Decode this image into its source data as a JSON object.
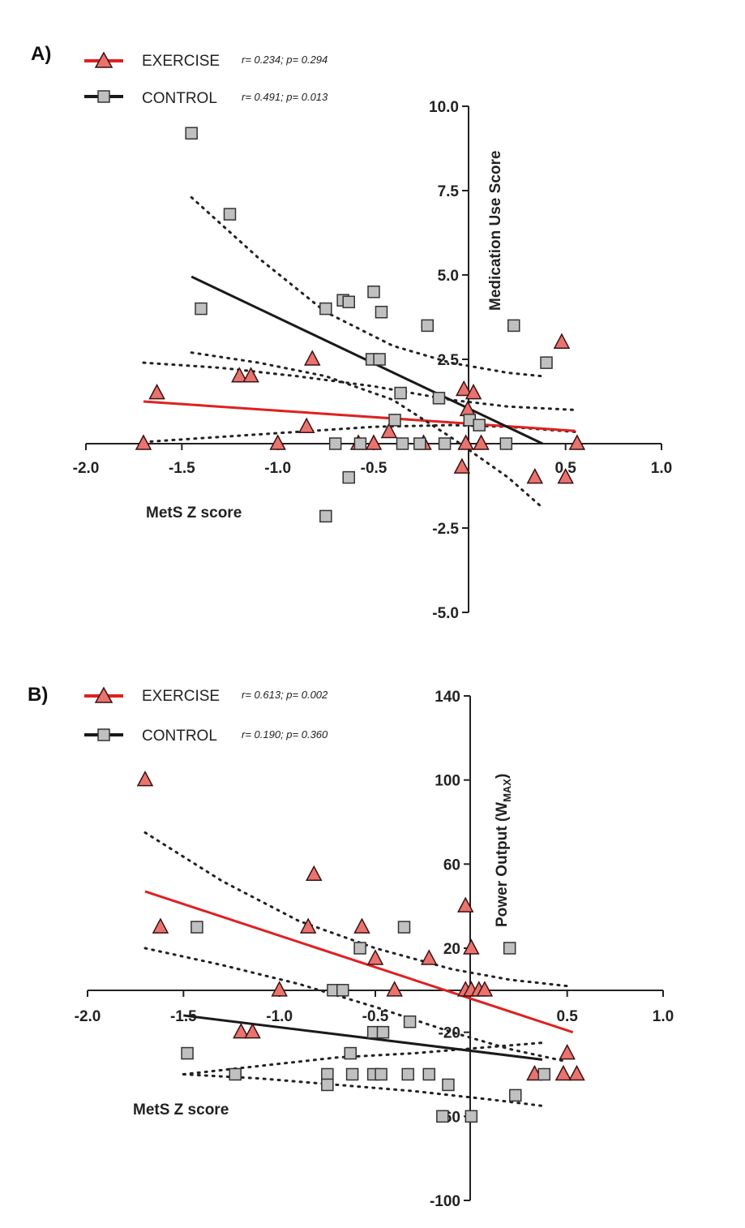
{
  "chart_data": [
    {
      "panel_label": "A)",
      "type": "scatter",
      "xlabel": "MetS Z score",
      "ylabel": "Medication Use Score",
      "xlim": [
        -2.0,
        1.0
      ],
      "ylim": [
        -5.0,
        10.0
      ],
      "xticks": [
        "-2.0",
        "-1.5",
        "-1.0",
        "-0.5",
        "0.5",
        "1.0"
      ],
      "yticks": [
        "-5.0",
        "-2.5",
        "2.5",
        "5.0",
        "7.5",
        "10.0"
      ],
      "series": [
        {
          "name": "EXERCISE",
          "stats": "r= 0.234; p= 0.294",
          "marker": "triangle",
          "color": "#e8736f",
          "line_color": "#e02020",
          "points": [
            [
              -1.7,
              0
            ],
            [
              -1.63,
              1.5
            ],
            [
              -1.0,
              0
            ],
            [
              -0.85,
              0.5
            ],
            [
              -0.82,
              2.5
            ],
            [
              -1.2,
              2
            ],
            [
              -1.14,
              2
            ],
            [
              -0.58,
              0
            ],
            [
              -0.5,
              0
            ],
            [
              -0.42,
              0.35
            ],
            [
              -0.24,
              0
            ],
            [
              -0.02,
              0
            ],
            [
              0.06,
              0
            ],
            [
              -0.03,
              1.6
            ],
            [
              0.02,
              1.5
            ],
            [
              -0.01,
              1.0
            ],
            [
              -0.04,
              -0.7
            ],
            [
              0.34,
              -1.0
            ],
            [
              0.48,
              3.0
            ],
            [
              0.5,
              -1.0
            ],
            [
              0.56,
              0
            ]
          ],
          "fit_line": {
            "x": [
              -1.7,
              0.55
            ],
            "y": [
              1.25,
              0.38
            ]
          },
          "ci": [
            {
              "x": [
                -1.7,
                -1.3,
                -0.9,
                -0.5,
                -0.1,
                0.2,
                0.55
              ],
              "y": [
                0.05,
                0.2,
                0.35,
                0.5,
                0.55,
                0.5,
                0.35
              ]
            },
            {
              "x": [
                -1.7,
                -1.3,
                -0.9,
                -0.5,
                -0.1,
                0.2,
                0.55
              ],
              "y": [
                2.4,
                2.25,
                2.0,
                1.7,
                1.3,
                1.1,
                1.0
              ]
            }
          ]
        },
        {
          "name": "CONTROL",
          "stats": "r= 0.491; p= 0.013",
          "marker": "square",
          "color": "#c0c0c0",
          "line_color": "#1a1a1a",
          "points": [
            [
              -1.45,
              9.2
            ],
            [
              -1.4,
              4
            ],
            [
              -1.25,
              6.8
            ],
            [
              -0.75,
              4
            ],
            [
              -0.66,
              4.25
            ],
            [
              -0.63,
              4.2
            ],
            [
              -0.5,
              4.5
            ],
            [
              -0.46,
              3.9
            ],
            [
              -0.51,
              2.5
            ],
            [
              -0.47,
              2.5
            ],
            [
              -0.22,
              3.5
            ],
            [
              -0.36,
              1.5
            ],
            [
              -0.16,
              1.35
            ],
            [
              -0.7,
              0
            ],
            [
              -0.57,
              0
            ],
            [
              -0.35,
              0
            ],
            [
              -0.26,
              0
            ],
            [
              -0.13,
              0
            ],
            [
              -0.39,
              0.7
            ],
            [
              0.0,
              0.7
            ],
            [
              0.05,
              0.55
            ],
            [
              0.19,
              0
            ],
            [
              0.23,
              3.5
            ],
            [
              0.4,
              2.4
            ],
            [
              -0.63,
              -1.0
            ],
            [
              -0.75,
              -2.15
            ]
          ],
          "fit_line": {
            "x": [
              -1.45,
              0.38
            ],
            "y": [
              4.95,
              0.0
            ]
          },
          "ci": [
            {
              "x": [
                -1.45,
                -1.1,
                -0.75,
                -0.4,
                -0.1,
                0.2,
                0.38
              ],
              "y": [
                7.3,
                5.5,
                3.9,
                2.9,
                2.4,
                2.1,
                2.0
              ]
            },
            {
              "x": [
                -1.45,
                -1.1,
                -0.75,
                -0.4,
                -0.1,
                0.2,
                0.38
              ],
              "y": [
                2.7,
                2.4,
                2.0,
                1.3,
                0.2,
                -1.0,
                -1.9
              ]
            }
          ]
        }
      ]
    },
    {
      "panel_label": "B)",
      "type": "scatter",
      "xlabel": "MetS Z score",
      "ylabel": "Power Output (WMAX)",
      "ylabel_main": "Power Output (W",
      "ylabel_sub": "MAX",
      "ylabel_close": ")",
      "xlim": [
        -2.0,
        1.0
      ],
      "ylim": [
        -100,
        140
      ],
      "xticks": [
        "-2.0",
        "-1.5",
        "-1.0",
        "-0.5",
        "0.5",
        "1.0"
      ],
      "yticks": [
        "-100",
        "-60",
        "-20",
        "20",
        "60",
        "100",
        "140"
      ],
      "series": [
        {
          "name": "EXERCISE",
          "stats": "r= 0.613; p= 0.002",
          "marker": "triangle",
          "color": "#e8736f",
          "line_color": "#e02020",
          "points": [
            [
              -1.7,
              100
            ],
            [
              -1.62,
              30
            ],
            [
              -1.2,
              -20
            ],
            [
              -1.14,
              -20
            ],
            [
              -1.0,
              0
            ],
            [
              -0.82,
              55
            ],
            [
              -0.85,
              30
            ],
            [
              -0.57,
              30
            ],
            [
              -0.5,
              15
            ],
            [
              -0.4,
              0
            ],
            [
              -0.22,
              15
            ],
            [
              -0.03,
              0
            ],
            [
              0.0,
              0
            ],
            [
              0.04,
              0
            ],
            [
              0.07,
              0
            ],
            [
              -0.03,
              40
            ],
            [
              0.0,
              20
            ],
            [
              0.33,
              -40
            ],
            [
              0.48,
              -40
            ],
            [
              0.5,
              -30
            ],
            [
              0.55,
              -40
            ]
          ],
          "fit_line": {
            "x": [
              -1.7,
              0.53
            ],
            "y": [
              47,
              -20
            ]
          },
          "ci": [
            {
              "x": [
                -1.7,
                -1.3,
                -0.9,
                -0.5,
                -0.1,
                0.2,
                0.5
              ],
              "y": [
                75,
                52,
                33,
                20,
                10,
                5,
                2
              ]
            },
            {
              "x": [
                -1.7,
                -1.3,
                -0.9,
                -0.5,
                -0.1,
                0.2,
                0.5
              ],
              "y": [
                20,
                12,
                3,
                -8,
                -20,
                -28,
                -34
              ]
            }
          ]
        },
        {
          "name": "CONTROL",
          "stats": "r= 0.190; p= 0.360",
          "marker": "square",
          "color": "#c0c0c0",
          "line_color": "#1a1a1a",
          "points": [
            [
              -1.43,
              30
            ],
            [
              -1.48,
              -30
            ],
            [
              -1.23,
              -40
            ],
            [
              -0.72,
              0
            ],
            [
              -0.67,
              0
            ],
            [
              -0.58,
              20
            ],
            [
              -0.35,
              30
            ],
            [
              -0.75,
              -40
            ],
            [
              -0.75,
              -45
            ],
            [
              -0.63,
              -30
            ],
            [
              -0.62,
              -40
            ],
            [
              -0.51,
              -40
            ],
            [
              -0.47,
              -40
            ],
            [
              -0.51,
              -20
            ],
            [
              -0.46,
              -20
            ],
            [
              -0.32,
              -15
            ],
            [
              -0.33,
              -40
            ],
            [
              -0.22,
              -40
            ],
            [
              -0.12,
              -45
            ],
            [
              -0.15,
              -60
            ],
            [
              0.0,
              -60
            ],
            [
              0.2,
              20
            ],
            [
              0.23,
              -50
            ],
            [
              0.38,
              -40
            ]
          ],
          "fit_line": {
            "x": [
              -1.5,
              0.37
            ],
            "y": [
              -12,
              -33
            ]
          },
          "ci": [
            {
              "x": [
                -1.5,
                -1.1,
                -0.7,
                -0.3,
                0.1,
                0.37
              ],
              "y": [
                -40,
                -36,
                -32,
                -30,
                -27,
                -25
              ]
            },
            {
              "x": [
                -1.5,
                -1.1,
                -0.7,
                -0.3,
                0.1,
                0.37
              ],
              "y": [
                -40,
                -42,
                -45,
                -48,
                -52,
                -55
              ]
            }
          ]
        }
      ]
    }
  ]
}
